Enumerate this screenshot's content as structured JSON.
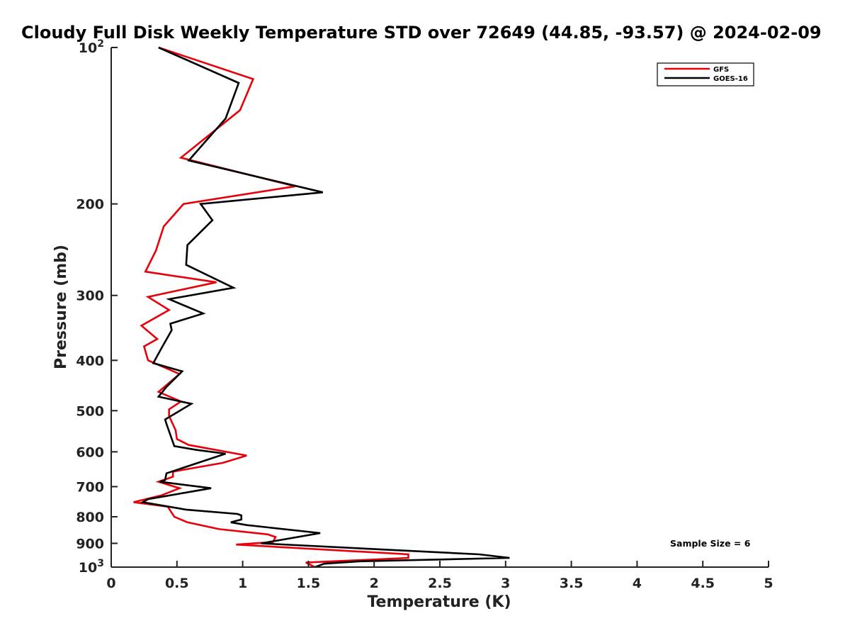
{
  "chart_data": {
    "type": "line",
    "title": "Cloudy Full Disk Weekly Temperature STD over 72649 (44.85, -93.57) @ 2024-02-09",
    "xlabel": "Temperature (K)",
    "ylabel": "Pressure (mb)",
    "xlim": [
      0,
      5
    ],
    "ylim": [
      1000,
      100
    ],
    "y_scale": "log",
    "y_reversed": true,
    "grid": false,
    "legend_position": "top-right",
    "x_ticks": [
      "0",
      "0.5",
      "1",
      "1.5",
      "2",
      "2.5",
      "3",
      "3.5",
      "4",
      "4.5",
      "5"
    ],
    "y_ticks": [
      {
        "value": 100,
        "base": "10",
        "exp": "2"
      },
      {
        "value": 200,
        "label": "200"
      },
      {
        "value": 300,
        "label": "300"
      },
      {
        "value": 400,
        "label": "400"
      },
      {
        "value": 500,
        "label": "500"
      },
      {
        "value": 600,
        "label": "600"
      },
      {
        "value": 700,
        "label": "700"
      },
      {
        "value": 800,
        "label": "800"
      },
      {
        "value": 900,
        "label": "900"
      },
      {
        "value": 1000,
        "base": "10",
        "exp": "3"
      }
    ],
    "annotation": "Sample Size = 6",
    "series": [
      {
        "name": "GFS",
        "color": "#e8000b",
        "points": [
          [
            0.36,
            100
          ],
          [
            1.08,
            115
          ],
          [
            0.98,
            132
          ],
          [
            0.53,
            163
          ],
          [
            1.4,
            185
          ],
          [
            0.55,
            200
          ],
          [
            0.4,
            221
          ],
          [
            0.34,
            246
          ],
          [
            0.26,
            270
          ],
          [
            0.8,
            283
          ],
          [
            0.28,
            302
          ],
          [
            0.44,
            320
          ],
          [
            0.23,
            343
          ],
          [
            0.35,
            364
          ],
          [
            0.25,
            376
          ],
          [
            0.28,
            400
          ],
          [
            0.52,
            425
          ],
          [
            0.36,
            460
          ],
          [
            0.53,
            480
          ],
          [
            0.44,
            497
          ],
          [
            0.44,
            512
          ],
          [
            0.49,
            545
          ],
          [
            0.5,
            567
          ],
          [
            0.59,
            582
          ],
          [
            1.03,
            610
          ],
          [
            0.85,
            630
          ],
          [
            0.47,
            655
          ],
          [
            0.47,
            670
          ],
          [
            0.36,
            685
          ],
          [
            0.52,
            705
          ],
          [
            0.38,
            728
          ],
          [
            0.17,
            750
          ],
          [
            0.43,
            765
          ],
          [
            0.48,
            800
          ],
          [
            0.58,
            820
          ],
          [
            0.82,
            845
          ],
          [
            1.19,
            865
          ],
          [
            1.25,
            875
          ],
          [
            1.23,
            895
          ],
          [
            0.95,
            905
          ],
          [
            2.26,
            945
          ],
          [
            2.26,
            960
          ],
          [
            1.48,
            980
          ],
          [
            1.55,
            1000
          ]
        ]
      },
      {
        "name": "GOES-16",
        "color": "#000000",
        "points": [
          [
            0.36,
            100
          ],
          [
            0.97,
            117
          ],
          [
            0.87,
            137
          ],
          [
            0.59,
            165
          ],
          [
            1.61,
            190
          ],
          [
            0.68,
            200
          ],
          [
            0.77,
            215
          ],
          [
            0.58,
            240
          ],
          [
            0.57,
            262
          ],
          [
            0.93,
            290
          ],
          [
            0.44,
            305
          ],
          [
            0.7,
            325
          ],
          [
            0.45,
            340
          ],
          [
            0.46,
            350
          ],
          [
            0.38,
            380
          ],
          [
            0.32,
            405
          ],
          [
            0.54,
            420
          ],
          [
            0.42,
            450
          ],
          [
            0.36,
            470
          ],
          [
            0.61,
            485
          ],
          [
            0.41,
            520
          ],
          [
            0.42,
            530
          ],
          [
            0.48,
            585
          ],
          [
            0.65,
            595
          ],
          [
            0.87,
            605
          ],
          [
            0.42,
            660
          ],
          [
            0.41,
            680
          ],
          [
            0.37,
            685
          ],
          [
            0.76,
            705
          ],
          [
            0.28,
            740
          ],
          [
            0.24,
            750
          ],
          [
            0.57,
            775
          ],
          [
            0.96,
            790
          ],
          [
            0.99,
            795
          ],
          [
            0.99,
            810
          ],
          [
            0.91,
            820
          ],
          [
            1.03,
            830
          ],
          [
            1.59,
            860
          ],
          [
            1.14,
            900
          ],
          [
            2.8,
            945
          ],
          [
            3.03,
            960
          ],
          [
            1.88,
            975
          ],
          [
            1.62,
            985
          ],
          [
            1.55,
            1000
          ]
        ]
      }
    ]
  }
}
